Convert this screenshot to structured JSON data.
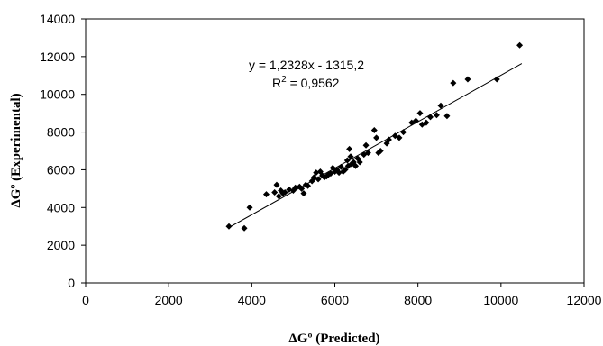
{
  "chart_data": {
    "type": "scatter",
    "xlabel": "ΔGº (Predicted)",
    "ylabel": "ΔGº (Experimental)",
    "xlim": [
      0,
      12000
    ],
    "ylim": [
      0,
      14000
    ],
    "x_ticks": [
      "0",
      "2000",
      "4000",
      "6000",
      "8000",
      "10000",
      "12000"
    ],
    "y_ticks": [
      "0",
      "2000",
      "4000",
      "6000",
      "8000",
      "10000",
      "12000",
      "14000"
    ],
    "grid": false,
    "trendline": {
      "equation_text": "y = 1,2328x - 1315,2",
      "r2_label": "R",
      "r2_sup": "2",
      "r2_value": " = 0,9562",
      "slope": 1.2328,
      "intercept": -1315.2,
      "x_range": [
        3450,
        10500
      ]
    },
    "points": [
      [
        3450,
        3000
      ],
      [
        3820,
        2900
      ],
      [
        3950,
        4000
      ],
      [
        4350,
        4700
      ],
      [
        4550,
        4800
      ],
      [
        4600,
        5200
      ],
      [
        4650,
        4600
      ],
      [
        4700,
        4900
      ],
      [
        4750,
        4750
      ],
      [
        4800,
        4800
      ],
      [
        4900,
        4950
      ],
      [
        5000,
        4900
      ],
      [
        5050,
        5050
      ],
      [
        5150,
        5100
      ],
      [
        5200,
        5000
      ],
      [
        5250,
        4750
      ],
      [
        5300,
        5200
      ],
      [
        5350,
        5150
      ],
      [
        5450,
        5400
      ],
      [
        5500,
        5600
      ],
      [
        5550,
        5850
      ],
      [
        5600,
        5500
      ],
      [
        5650,
        5900
      ],
      [
        5700,
        5700
      ],
      [
        5750,
        5600
      ],
      [
        5800,
        5650
      ],
      [
        5850,
        5750
      ],
      [
        5900,
        5800
      ],
      [
        5950,
        6100
      ],
      [
        6000,
        5900
      ],
      [
        6050,
        6000
      ],
      [
        6100,
        5850
      ],
      [
        6150,
        6150
      ],
      [
        6200,
        5900
      ],
      [
        6250,
        6000
      ],
      [
        6300,
        6500
      ],
      [
        6320,
        6200
      ],
      [
        6350,
        7100
      ],
      [
        6380,
        6700
      ],
      [
        6400,
        6300
      ],
      [
        6450,
        6400
      ],
      [
        6500,
        6200
      ],
      [
        6550,
        6600
      ],
      [
        6600,
        6400
      ],
      [
        6700,
        6800
      ],
      [
        6750,
        7300
      ],
      [
        6800,
        6900
      ],
      [
        6950,
        8100
      ],
      [
        7000,
        7700
      ],
      [
        7050,
        6900
      ],
      [
        7100,
        7000
      ],
      [
        7250,
        7400
      ],
      [
        7300,
        7600
      ],
      [
        7450,
        7800
      ],
      [
        7550,
        7700
      ],
      [
        7650,
        8000
      ],
      [
        7850,
        8500
      ],
      [
        7950,
        8600
      ],
      [
        8050,
        9000
      ],
      [
        8100,
        8400
      ],
      [
        8200,
        8500
      ],
      [
        8300,
        8800
      ],
      [
        8450,
        8900
      ],
      [
        8550,
        9400
      ],
      [
        8700,
        8850
      ],
      [
        8850,
        10600
      ],
      [
        9200,
        10800
      ],
      [
        9900,
        10800
      ],
      [
        10450,
        12600
      ]
    ]
  }
}
